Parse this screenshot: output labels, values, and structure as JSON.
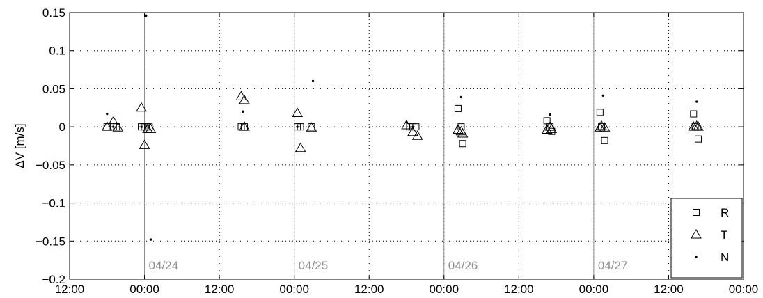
{
  "chart_data": {
    "type": "scatter",
    "title": "",
    "xlabel": "",
    "ylabel": "ΔV  [m/s]",
    "xlim": [
      "04/23 12:00",
      "04/28 00:00"
    ],
    "ylim": [
      -0.2,
      0.15
    ],
    "grid": true,
    "legend_placement": "bottom-right",
    "x_tick_labels": [
      "12:00",
      "00:00",
      "12:00",
      "00:00",
      "12:00",
      "00:00",
      "12:00",
      "00:00",
      "12:00",
      "00:00"
    ],
    "y_tick_labels": [
      "0.15",
      "0.1",
      "0.05",
      "0",
      "−0.05",
      "−0.1",
      "−0.15",
      "−0.2"
    ],
    "day_boundaries": [
      {
        "x": "04/24 00:00",
        "label": "04/24"
      },
      {
        "x": "04/25 00:00",
        "label": "04/25"
      },
      {
        "x": "04/26 00:00",
        "label": "04/26"
      },
      {
        "x": "04/27 00:00",
        "label": "04/27"
      }
    ],
    "series": [
      {
        "name": "R",
        "marker": "square",
        "points": [
          {
            "x": "04/23 18:00",
            "y": 0.0
          },
          {
            "x": "04/23 19:00",
            "y": 0.0
          },
          {
            "x": "04/23 19:30",
            "y": 0.0
          },
          {
            "x": "04/23 23:30",
            "y": 0.0
          },
          {
            "x": "04/24 00:00",
            "y": 0.0
          },
          {
            "x": "04/24 00:15",
            "y": 0.0
          },
          {
            "x": "04/24 00:45",
            "y": 0.0
          },
          {
            "x": "04/24 15:30",
            "y": 0.0
          },
          {
            "x": "04/24 16:00",
            "y": 0.0
          },
          {
            "x": "04/25 00:30",
            "y": 0.0
          },
          {
            "x": "04/25 01:00",
            "y": 0.0
          },
          {
            "x": "04/25 02:45",
            "y": 0.0
          },
          {
            "x": "04/25 18:30",
            "y": 0.0
          },
          {
            "x": "04/25 19:00",
            "y": 0.0
          },
          {
            "x": "04/25 19:30",
            "y": 0.0
          },
          {
            "x": "04/26 02:15",
            "y": 0.024
          },
          {
            "x": "04/26 02:45",
            "y": 0.0
          },
          {
            "x": "04/26 03:00",
            "y": -0.022
          },
          {
            "x": "04/26 16:30",
            "y": 0.008
          },
          {
            "x": "04/26 17:00",
            "y": 0.0
          },
          {
            "x": "04/26 17:15",
            "y": -0.006
          },
          {
            "x": "04/27 01:00",
            "y": 0.019
          },
          {
            "x": "04/27 01:15",
            "y": 0.0
          },
          {
            "x": "04/27 01:45",
            "y": -0.018
          },
          {
            "x": "04/27 16:00",
            "y": 0.017
          },
          {
            "x": "04/27 16:15",
            "y": 0.0
          },
          {
            "x": "04/27 16:45",
            "y": -0.016
          }
        ]
      },
      {
        "name": "T",
        "marker": "triangle",
        "points": [
          {
            "x": "04/23 18:00",
            "y": 0.0
          },
          {
            "x": "04/23 19:00",
            "y": 0.007
          },
          {
            "x": "04/23 19:45",
            "y": -0.001
          },
          {
            "x": "04/23 23:30",
            "y": 0.025
          },
          {
            "x": "04/24 00:00",
            "y": -0.024
          },
          {
            "x": "04/24 00:30",
            "y": -0.003
          },
          {
            "x": "04/24 01:00",
            "y": -0.003
          },
          {
            "x": "04/24 15:30",
            "y": 0.04
          },
          {
            "x": "04/24 16:00",
            "y": 0.035
          },
          {
            "x": "04/24 16:00",
            "y": 0.0
          },
          {
            "x": "04/25 00:30",
            "y": 0.018
          },
          {
            "x": "04/25 01:00",
            "y": -0.028
          },
          {
            "x": "04/25 02:45",
            "y": -0.001
          },
          {
            "x": "04/25 18:00",
            "y": 0.002
          },
          {
            "x": "04/25 19:00",
            "y": -0.007
          },
          {
            "x": "04/25 19:45",
            "y": -0.012
          },
          {
            "x": "04/26 02:15",
            "y": -0.004
          },
          {
            "x": "04/26 02:45",
            "y": -0.006
          },
          {
            "x": "04/26 03:00",
            "y": -0.009
          },
          {
            "x": "04/26 16:30",
            "y": -0.004
          },
          {
            "x": "04/26 17:00",
            "y": 0.0
          },
          {
            "x": "04/26 17:15",
            "y": -0.003
          },
          {
            "x": "04/27 01:00",
            "y": -0.001
          },
          {
            "x": "04/27 01:15",
            "y": 0.001
          },
          {
            "x": "04/27 01:45",
            "y": -0.001
          },
          {
            "x": "04/27 16:00",
            "y": 0.0
          },
          {
            "x": "04/27 16:30",
            "y": 0.001
          },
          {
            "x": "04/27 16:45",
            "y": 0.0
          }
        ]
      },
      {
        "name": "N",
        "marker": "dot",
        "points": [
          {
            "x": "04/23 18:00",
            "y": 0.017
          },
          {
            "x": "04/23 19:00",
            "y": 0.0
          },
          {
            "x": "04/23 23:30",
            "y": 0.0
          },
          {
            "x": "04/24 00:15",
            "y": 0.146
          },
          {
            "x": "04/24 01:00",
            "y": -0.148
          },
          {
            "x": "04/24 15:45",
            "y": 0.02
          },
          {
            "x": "04/25 00:30",
            "y": 0.0
          },
          {
            "x": "04/25 03:00",
            "y": 0.06
          },
          {
            "x": "04/25 18:00",
            "y": 0.006
          },
          {
            "x": "04/25 19:00",
            "y": 0.0
          },
          {
            "x": "04/26 02:45",
            "y": 0.039
          },
          {
            "x": "04/26 17:00",
            "y": 0.016
          },
          {
            "x": "04/27 01:30",
            "y": 0.041
          },
          {
            "x": "04/27 16:30",
            "y": 0.033
          }
        ]
      }
    ]
  }
}
